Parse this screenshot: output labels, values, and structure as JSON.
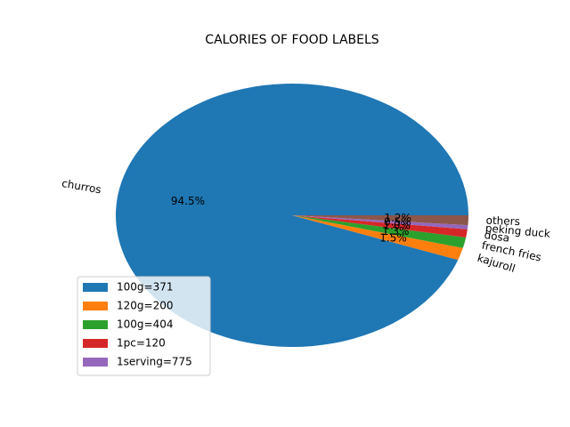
{
  "chart_data": {
    "type": "pie",
    "title": "CALORIES OF FOOD LABELS",
    "labels": [
      "churros",
      "kajuroll",
      "french fries",
      "dosa",
      "peking duck",
      "others"
    ],
    "values": [
      94.5,
      1.5,
      1.3,
      1.0,
      0.5,
      1.2
    ],
    "pct_labels": [
      "94.5%",
      "1.5%",
      "1.3%",
      "1.0%",
      "0.5%",
      "1.2%"
    ],
    "colors": [
      "#1f77b4",
      "#ff7f0e",
      "#2ca02c",
      "#d62728",
      "#9467bd",
      "#8c564b"
    ],
    "legend": {
      "placement": "lower-left",
      "entries": [
        {
          "label": "100g=371",
          "color": "#1f77b4"
        },
        {
          "label": "120g=200",
          "color": "#ff7f0e"
        },
        {
          "label": "100g=404",
          "color": "#2ca02c"
        },
        {
          "label": "1pc=120",
          "color": "#d62728"
        },
        {
          "label": "1serving=775",
          "color": "#9467bd"
        }
      ]
    }
  }
}
